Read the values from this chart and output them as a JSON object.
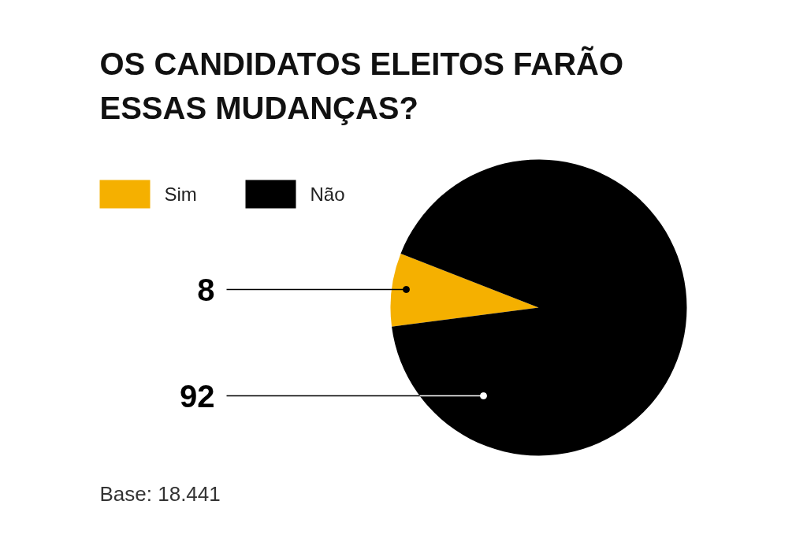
{
  "chart_data": {
    "type": "pie",
    "title": "OS CANDIDATOS ELEITOS FARÃO ESSAS MUDANÇAS?",
    "categories": [
      "Sim",
      "Não"
    ],
    "values": [
      8,
      92
    ],
    "colors": [
      "#f5b000",
      "#000000"
    ],
    "legend": "top left",
    "data_labels": true,
    "annotations": [
      "Base: 18.441"
    ]
  }
}
